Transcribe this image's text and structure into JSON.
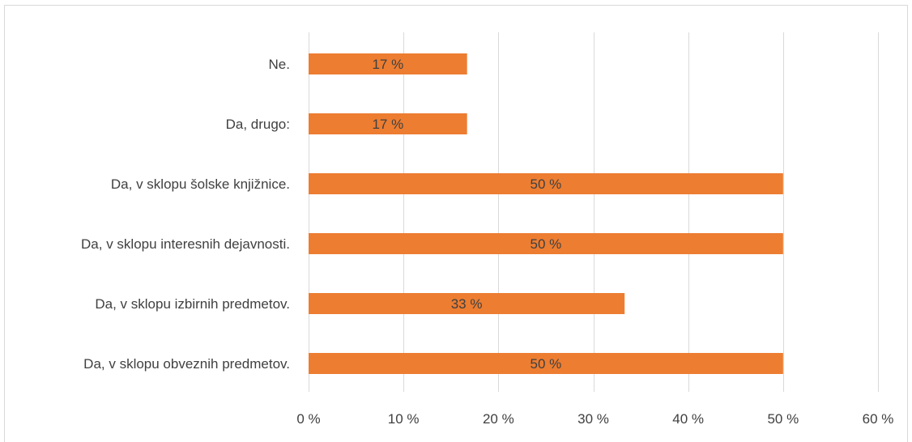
{
  "chart_data": {
    "type": "bar",
    "orientation": "horizontal",
    "categories": [
      "Ne.",
      "Da, drugo:",
      "Da, v sklopu šolske knjižnice.",
      "Da, v sklopu interesnih dejavnosti.",
      "Da, v sklopu izbirnih predmetov.",
      "Da, v sklopu obveznih predmetov."
    ],
    "values": [
      16.7,
      16.7,
      50,
      50,
      33.3,
      50
    ],
    "data_labels": [
      "17 %",
      "17 %",
      "50 %",
      "50 %",
      "33 %",
      "50 %"
    ],
    "xlim": [
      0,
      60
    ],
    "x_ticks": [
      0,
      10,
      20,
      30,
      40,
      50,
      60
    ],
    "x_tick_labels": [
      "0 %",
      "10 %",
      "20 %",
      "30 %",
      "40 %",
      "50 %",
      "60 %"
    ],
    "bar_color": "#ED7D31",
    "grid": true,
    "gridline_color": "#d9d9d9",
    "title": "",
    "xlabel": "",
    "ylabel": ""
  }
}
